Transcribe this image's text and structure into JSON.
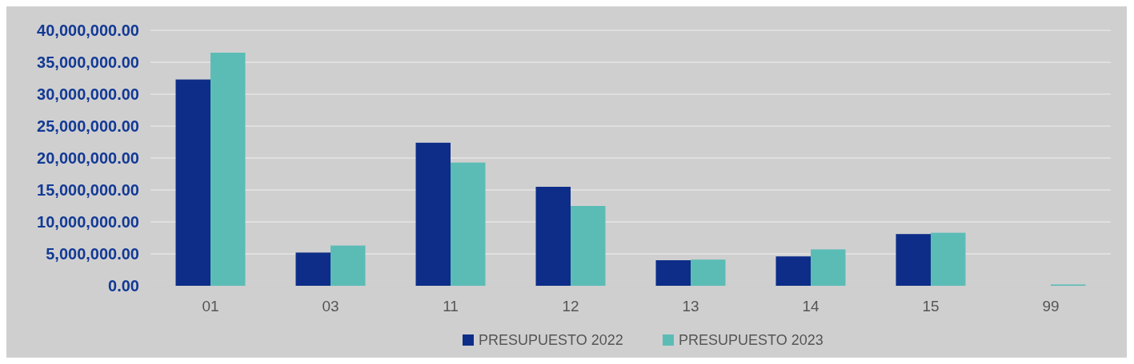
{
  "chart_data": {
    "type": "bar",
    "categories": [
      "01",
      "03",
      "11",
      "12",
      "13",
      "14",
      "15",
      "99"
    ],
    "series": [
      {
        "name": "PRESUPUESTO 2022",
        "color": "#0d2d88",
        "values": [
          32300000,
          5200000,
          22400000,
          15500000,
          4000000,
          4600000,
          8100000,
          0
        ]
      },
      {
        "name": "PRESUPUESTO 2023",
        "color": "#5bbcb6",
        "values": [
          36500000,
          6300000,
          19300000,
          12500000,
          4100000,
          5700000,
          8300000,
          200000
        ]
      }
    ],
    "ylim": [
      0,
      40000000
    ],
    "yticks": [
      {
        "value": 0,
        "label": "0.00"
      },
      {
        "value": 5000000,
        "label": "5,000,000.00"
      },
      {
        "value": 10000000,
        "label": "10,000,000.00"
      },
      {
        "value": 15000000,
        "label": "15,000,000.00"
      },
      {
        "value": 20000000,
        "label": "20,000,000.00"
      },
      {
        "value": 25000000,
        "label": "25,000,000.00"
      },
      {
        "value": 30000000,
        "label": "30,000,000.00"
      },
      {
        "value": 35000000,
        "label": "35,000,000.00"
      },
      {
        "value": 40000000,
        "label": "40,000,000.00"
      }
    ],
    "grid": "y",
    "legend": "bottom"
  }
}
